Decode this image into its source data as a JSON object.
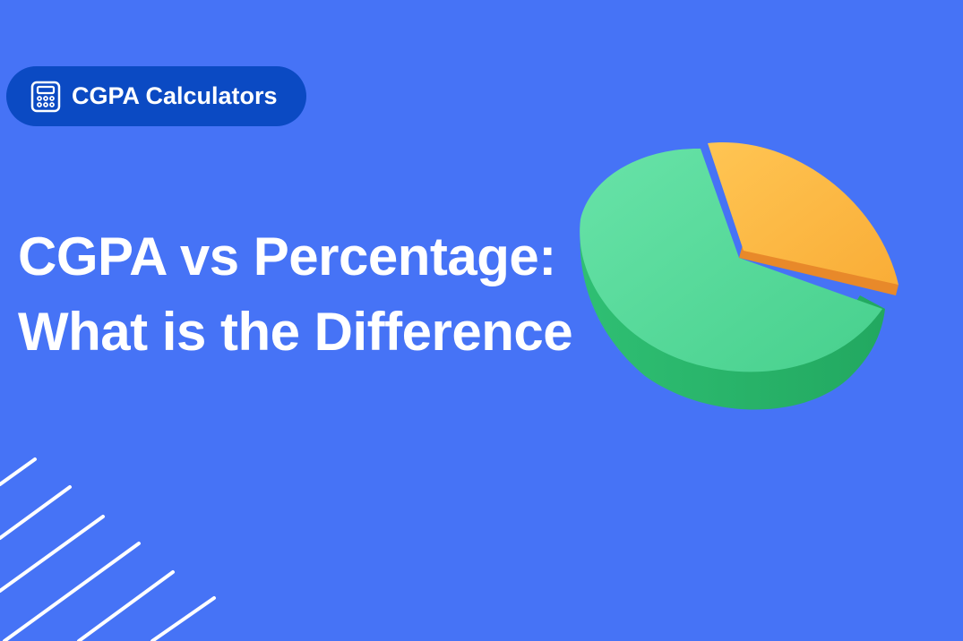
{
  "badge": {
    "icon": "calculator-icon",
    "label": "CGPA Calculators"
  },
  "title": {
    "line1": "CGPA vs Percentage:",
    "line2": "What is the Difference"
  },
  "colors": {
    "background": "#4673f6",
    "badge": "#0b4ac3",
    "pie_green": "#4fd893",
    "pie_orange": "#fbb63f"
  }
}
